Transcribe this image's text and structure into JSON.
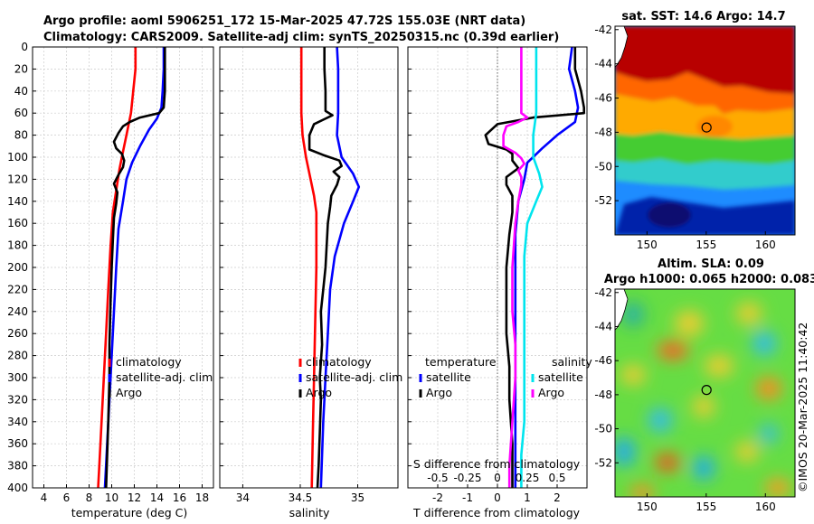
{
  "header": {
    "title_line1": "Argo profile: aoml 5906251_172 15-Mar-2025 47.72S 155.03E (NRT data)",
    "title_line2": "Climatology: CARS2009. Satellite-adj clim: synTS_20250315.nc (0.39d earlier)"
  },
  "colors": {
    "clim": "#ff0000",
    "sat": "#0000ff",
    "argo": "#000000",
    "sat_s": "#00e5ee",
    "argo_s": "#ff00ff",
    "grid": "#c8c8c8"
  },
  "chart_data": [
    {
      "id": "temperature",
      "type": "line",
      "xlabel": "temperature (deg C)",
      "xlim": [
        3,
        19
      ],
      "xticks": [
        4,
        6,
        8,
        10,
        12,
        14,
        16,
        18
      ],
      "ylim": [
        0,
        400
      ],
      "yticks": [
        0,
        20,
        40,
        60,
        80,
        100,
        120,
        140,
        160,
        180,
        200,
        220,
        240,
        260,
        280,
        300,
        320,
        340,
        360,
        380,
        400
      ],
      "reversed_y": true,
      "series": [
        {
          "name": "climatology",
          "color": "#ff0000",
          "points": [
            [
              12.1,
              0
            ],
            [
              12.1,
              20
            ],
            [
              11.9,
              40
            ],
            [
              11.7,
              60
            ],
            [
              11.3,
              80
            ],
            [
              11.0,
              95
            ],
            [
              10.7,
              110
            ],
            [
              10.4,
              130
            ],
            [
              10.1,
              150
            ],
            [
              9.9,
              180
            ],
            [
              9.7,
              220
            ],
            [
              9.5,
              260
            ],
            [
              9.3,
              300
            ],
            [
              9.1,
              340
            ],
            [
              8.9,
              380
            ],
            [
              8.8,
              400
            ]
          ]
        },
        {
          "name": "satellite-adj. clim",
          "color": "#0000ff",
          "points": [
            [
              14.6,
              0
            ],
            [
              14.6,
              20
            ],
            [
              14.5,
              40
            ],
            [
              14.4,
              55
            ],
            [
              14.0,
              65
            ],
            [
              13.3,
              75
            ],
            [
              12.5,
              90
            ],
            [
              11.8,
              105
            ],
            [
              11.3,
              120
            ],
            [
              11.0,
              140
            ],
            [
              10.6,
              165
            ],
            [
              10.4,
              200
            ],
            [
              10.2,
              240
            ],
            [
              10.0,
              280
            ],
            [
              9.8,
              320
            ],
            [
              9.6,
              360
            ],
            [
              9.4,
              400
            ]
          ]
        },
        {
          "name": "Argo",
          "color": "#000000",
          "points": [
            [
              14.7,
              0
            ],
            [
              14.7,
              20
            ],
            [
              14.7,
              40
            ],
            [
              14.6,
              55
            ],
            [
              14.2,
              60
            ],
            [
              12.5,
              64
            ],
            [
              11.6,
              68
            ],
            [
              11.0,
              72
            ],
            [
              10.6,
              78
            ],
            [
              10.2,
              86
            ],
            [
              10.4,
              92
            ],
            [
              10.9,
              97
            ],
            [
              11.1,
              103
            ],
            [
              11.0,
              109
            ],
            [
              10.6,
              116
            ],
            [
              10.2,
              124
            ],
            [
              10.5,
              132
            ],
            [
              10.4,
              142
            ],
            [
              10.2,
              155
            ],
            [
              10.1,
              175
            ],
            [
              10.0,
              200
            ],
            [
              9.9,
              230
            ],
            [
              9.8,
              270
            ],
            [
              9.8,
              300
            ],
            [
              9.7,
              340
            ],
            [
              9.6,
              370
            ],
            [
              9.5,
              400
            ]
          ]
        }
      ],
      "legend_entries": [
        "climatology",
        "satellite-adj. clim",
        "Argo"
      ]
    },
    {
      "id": "salinity",
      "type": "line",
      "xlabel": "salinity",
      "xlim": [
        33.8,
        35.35
      ],
      "xticks": [
        34,
        34.5,
        35
      ],
      "xtick_labels": [
        "34",
        "34.5",
        "35"
      ],
      "ylim": [
        0,
        400
      ],
      "reversed_y": true,
      "series": [
        {
          "name": "climatology",
          "color": "#ff0000",
          "points": [
            [
              34.51,
              0
            ],
            [
              34.51,
              20
            ],
            [
              34.51,
              40
            ],
            [
              34.51,
              60
            ],
            [
              34.52,
              80
            ],
            [
              34.55,
              100
            ],
            [
              34.59,
              120
            ],
            [
              34.62,
              135
            ],
            [
              34.64,
              150
            ],
            [
              34.64,
              200
            ],
            [
              34.63,
              250
            ],
            [
              34.62,
              300
            ],
            [
              34.61,
              350
            ],
            [
              34.6,
              400
            ]
          ]
        },
        {
          "name": "satellite-adj. clim",
          "color": "#0000ff",
          "points": [
            [
              34.82,
              0
            ],
            [
              34.83,
              20
            ],
            [
              34.83,
              40
            ],
            [
              34.83,
              60
            ],
            [
              34.82,
              80
            ],
            [
              34.86,
              100
            ],
            [
              34.96,
              115
            ],
            [
              35.01,
              127
            ],
            [
              34.96,
              140
            ],
            [
              34.88,
              160
            ],
            [
              34.8,
              190
            ],
            [
              34.76,
              220
            ],
            [
              34.74,
              260
            ],
            [
              34.72,
              300
            ],
            [
              34.7,
              340
            ],
            [
              34.69,
              370
            ],
            [
              34.68,
              400
            ]
          ]
        },
        {
          "name": "Argo",
          "color": "#000000",
          "points": [
            [
              34.71,
              0
            ],
            [
              34.71,
              20
            ],
            [
              34.72,
              40
            ],
            [
              34.72,
              58
            ],
            [
              34.78,
              62
            ],
            [
              34.7,
              66
            ],
            [
              34.62,
              70
            ],
            [
              34.58,
              80
            ],
            [
              34.58,
              93
            ],
            [
              34.7,
              98
            ],
            [
              34.84,
              103
            ],
            [
              34.86,
              108
            ],
            [
              34.79,
              113
            ],
            [
              34.84,
              118
            ],
            [
              34.82,
              125
            ],
            [
              34.77,
              135
            ],
            [
              34.76,
              145
            ],
            [
              34.74,
              160
            ],
            [
              34.73,
              180
            ],
            [
              34.72,
              200
            ],
            [
              34.7,
              220
            ],
            [
              34.68,
              240
            ],
            [
              34.69,
              270
            ],
            [
              34.67,
              300
            ],
            [
              34.68,
              320
            ],
            [
              34.67,
              350
            ],
            [
              34.66,
              380
            ],
            [
              34.65,
              400
            ]
          ]
        }
      ],
      "legend_entries": [
        "climatology",
        "satellite-adj. clim",
        "Argo"
      ]
    },
    {
      "id": "difference",
      "type": "line",
      "xlabel": "T difference from climatology",
      "xlim": [
        -3,
        3
      ],
      "xticks": [
        -2,
        -1,
        0,
        1,
        2
      ],
      "xtick_labels": [
        "-2",
        "-1",
        "0",
        "1",
        "2"
      ],
      "top_label": "S difference from climatology",
      "top_ticks": [
        "-0.5",
        "-0.25",
        "0",
        "0.25",
        "0.5"
      ],
      "top_tick_positions": [
        -2,
        -1,
        0,
        1,
        2
      ],
      "ylim": [
        0,
        400
      ],
      "reversed_y": true,
      "series": [
        {
          "name": "satellite T",
          "color": "#0000ff",
          "points": [
            [
              2.5,
              0
            ],
            [
              2.4,
              20
            ],
            [
              2.6,
              40
            ],
            [
              2.7,
              55
            ],
            [
              2.6,
              68
            ],
            [
              2.0,
              80
            ],
            [
              1.5,
              92
            ],
            [
              1.0,
              105
            ],
            [
              0.9,
              120
            ],
            [
              0.7,
              140
            ],
            [
              0.6,
              170
            ],
            [
              0.6,
              200
            ],
            [
              0.6,
              240
            ],
            [
              0.6,
              280
            ],
            [
              0.6,
              320
            ],
            [
              0.6,
              360
            ],
            [
              0.6,
              400
            ]
          ]
        },
        {
          "name": "Argo T",
          "color": "#000000",
          "points": [
            [
              2.6,
              0
            ],
            [
              2.6,
              20
            ],
            [
              2.8,
              40
            ],
            [
              2.9,
              55
            ],
            [
              2.9,
              60
            ],
            [
              1.2,
              64
            ],
            [
              0.0,
              70
            ],
            [
              -0.4,
              80
            ],
            [
              -0.3,
              88
            ],
            [
              0.3,
              93
            ],
            [
              0.5,
              97
            ],
            [
              0.5,
              103
            ],
            [
              0.7,
              110
            ],
            [
              0.3,
              118
            ],
            [
              0.3,
              125
            ],
            [
              0.5,
              135
            ],
            [
              0.5,
              150
            ],
            [
              0.4,
              170
            ],
            [
              0.3,
              200
            ],
            [
              0.3,
              230
            ],
            [
              0.3,
              260
            ],
            [
              0.4,
              290
            ],
            [
              0.4,
              320
            ],
            [
              0.5,
              360
            ],
            [
              0.5,
              400
            ]
          ]
        },
        {
          "name": "satellite S",
          "color": "#00e5ee",
          "points": [
            [
              1.3,
              0
            ],
            [
              1.3,
              20
            ],
            [
              1.3,
              40
            ],
            [
              1.3,
              60
            ],
            [
              1.2,
              80
            ],
            [
              1.2,
              100
            ],
            [
              1.4,
              115
            ],
            [
              1.5,
              127
            ],
            [
              1.3,
              140
            ],
            [
              1.0,
              160
            ],
            [
              0.9,
              190
            ],
            [
              0.9,
              220
            ],
            [
              0.9,
              260
            ],
            [
              0.9,
              300
            ],
            [
              0.9,
              340
            ],
            [
              0.8,
              370
            ],
            [
              0.8,
              400
            ]
          ]
        },
        {
          "name": "Argo S",
          "color": "#ff00ff",
          "points": [
            [
              0.8,
              0
            ],
            [
              0.8,
              20
            ],
            [
              0.8,
              40
            ],
            [
              0.8,
              60
            ],
            [
              1.0,
              64
            ],
            [
              0.7,
              68
            ],
            [
              0.3,
              72
            ],
            [
              0.2,
              80
            ],
            [
              0.2,
              90
            ],
            [
              0.6,
              96
            ],
            [
              0.8,
              101
            ],
            [
              0.9,
              106
            ],
            [
              0.7,
              112
            ],
            [
              0.8,
              118
            ],
            [
              0.8,
              125
            ],
            [
              0.7,
              140
            ],
            [
              0.6,
              160
            ],
            [
              0.5,
              200
            ],
            [
              0.5,
              240
            ],
            [
              0.6,
              270
            ],
            [
              0.6,
              300
            ],
            [
              0.5,
              340
            ],
            [
              0.4,
              380
            ],
            [
              0.4,
              400
            ]
          ]
        }
      ],
      "legend_temperature": {
        "header": "temperature",
        "entries": [
          "satellite",
          "Argo"
        ]
      },
      "legend_salinity": {
        "header": "salinity",
        "entries": [
          "satellite",
          "Argo"
        ]
      }
    },
    {
      "id": "sst_map",
      "type": "heatmap",
      "title": "sat. SST: 14.6 Argo: 14.7",
      "xlim": [
        147.3,
        162.5
      ],
      "ylim": [
        -54,
        -41.8
      ],
      "xticks": [
        150,
        155,
        160
      ],
      "yticks": [
        -42,
        -44,
        -46,
        -48,
        -50,
        -52
      ],
      "float_position": [
        155.03,
        -47.72
      ]
    },
    {
      "id": "sla_map",
      "type": "heatmap",
      "title_line1": "Altim. SLA: 0.09",
      "title_line2": "Argo h1000: 0.065 h2000: 0.083",
      "xlim": [
        147.3,
        162.5
      ],
      "ylim": [
        -54,
        -41.8
      ],
      "xticks": [
        150,
        155,
        160
      ],
      "yticks": [
        -42,
        -44,
        -46,
        -48,
        -50,
        -52
      ],
      "float_position": [
        155.03,
        -47.72
      ]
    }
  ],
  "watermark": "©IMOS 20-Mar-2025 11:40:42"
}
